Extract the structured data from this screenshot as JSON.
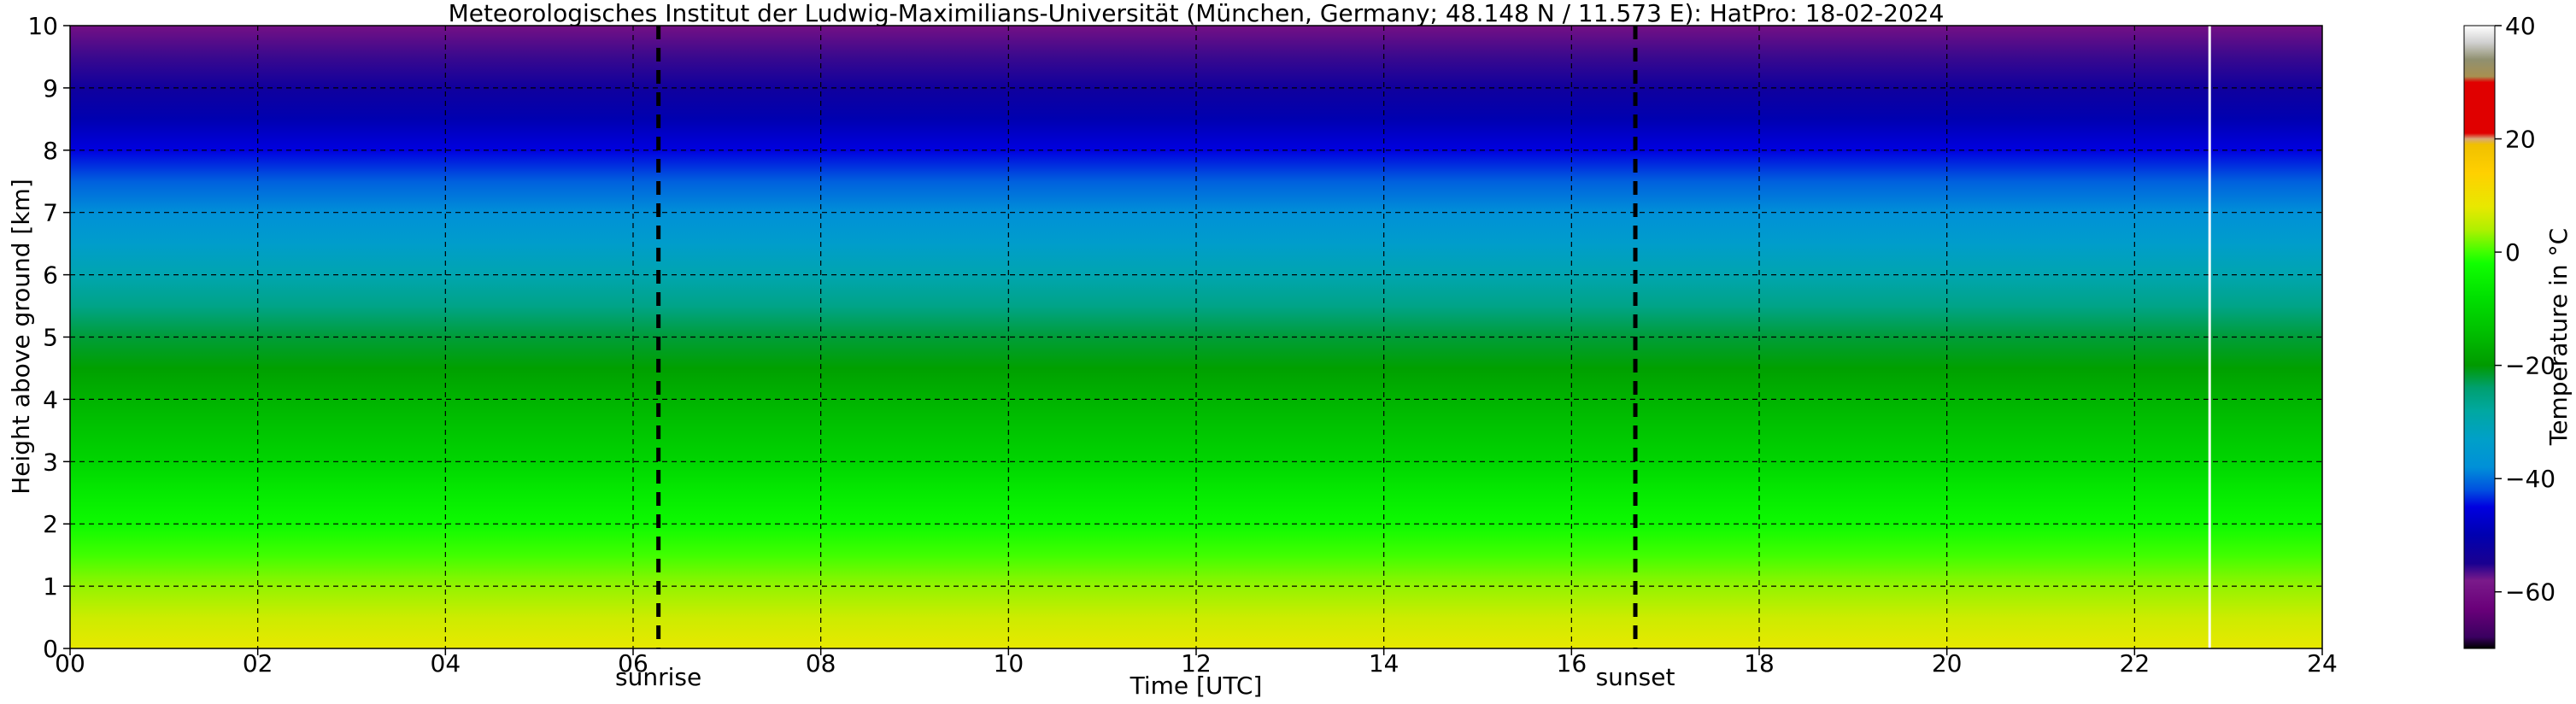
{
  "chart_data": {
    "type": "heatmap",
    "title": "Meteorologisches Institut der Ludwig-Maximilians-Universität (München, Germany; 48.148 N / 11.573 E):    HatPro: 18-02-2024",
    "xlabel": "Time [UTC]",
    "ylabel": "Height above ground [km]",
    "xlim": [
      0,
      24
    ],
    "ylim": [
      0,
      10
    ],
    "xticks": [
      0,
      2,
      4,
      6,
      8,
      10,
      12,
      14,
      16,
      18,
      20,
      22,
      24
    ],
    "xticklabels": [
      "00",
      "02",
      "04",
      "06",
      "08",
      "10",
      "12",
      "14",
      "16",
      "18",
      "20",
      "22",
      "24"
    ],
    "yticks": [
      0,
      1,
      2,
      3,
      4,
      5,
      6,
      7,
      8,
      9,
      10
    ],
    "yticklabels": [
      "0",
      "1",
      "2",
      "3",
      "4",
      "5",
      "6",
      "7",
      "8",
      "9",
      "10"
    ],
    "grid": true,
    "annotations": [
      {
        "label": "sunrise",
        "x": 6.27
      },
      {
        "label": "sunset",
        "x": 16.68
      }
    ],
    "data_gap_start": 22.8,
    "colorbar": {
      "label": "Temperature in °C",
      "range": [
        -70,
        40
      ],
      "ticks": [
        -60,
        -40,
        -20,
        0,
        20,
        40
      ],
      "ticklabels": [
        "−60",
        "−40",
        "−20",
        "0",
        "20",
        "40"
      ]
    },
    "temperature_profile": [
      {
        "height_km": 0.0,
        "temp_c": 8.0
      },
      {
        "height_km": 0.5,
        "temp_c": 6.0
      },
      {
        "height_km": 1.0,
        "temp_c": 3.0
      },
      {
        "height_km": 1.5,
        "temp_c": 0.0
      },
      {
        "height_km": 2.0,
        "temp_c": -3.0
      },
      {
        "height_km": 2.5,
        "temp_c": -6.0
      },
      {
        "height_km": 3.0,
        "temp_c": -10.0
      },
      {
        "height_km": 3.5,
        "temp_c": -13.0
      },
      {
        "height_km": 4.0,
        "temp_c": -16.0
      },
      {
        "height_km": 4.5,
        "temp_c": -19.0
      },
      {
        "height_km": 5.0,
        "temp_c": -22.0
      },
      {
        "height_km": 5.5,
        "temp_c": -26.0
      },
      {
        "height_km": 6.0,
        "temp_c": -30.0
      },
      {
        "height_km": 6.5,
        "temp_c": -34.0
      },
      {
        "height_km": 7.0,
        "temp_c": -38.0
      },
      {
        "height_km": 7.5,
        "temp_c": -41.0
      },
      {
        "height_km": 8.0,
        "temp_c": -45.0
      },
      {
        "height_km": 8.5,
        "temp_c": -50.0
      },
      {
        "height_km": 9.0,
        "temp_c": -53.0
      },
      {
        "height_km": 9.5,
        "temp_c": -56.0
      },
      {
        "height_km": 10.0,
        "temp_c": -60.0
      }
    ]
  },
  "colormap": [
    {
      "temp_c": -70,
      "color": "#000000"
    },
    {
      "temp_c": -68,
      "color": "#3a0060"
    },
    {
      "temp_c": -63,
      "color": "#6a007a"
    },
    {
      "temp_c": -58,
      "color": "#7a1a8a"
    },
    {
      "temp_c": -55,
      "color": "#1a0090"
    },
    {
      "temp_c": -50,
      "color": "#0000b0"
    },
    {
      "temp_c": -45,
      "color": "#0000e0"
    },
    {
      "temp_c": -42,
      "color": "#0050e0"
    },
    {
      "temp_c": -38,
      "color": "#0090d8"
    },
    {
      "temp_c": -33,
      "color": "#00a0c8"
    },
    {
      "temp_c": -28,
      "color": "#00a8a0"
    },
    {
      "temp_c": -24,
      "color": "#00a070"
    },
    {
      "temp_c": -20,
      "color": "#009a00"
    },
    {
      "temp_c": -14,
      "color": "#00c000"
    },
    {
      "temp_c": -8,
      "color": "#00e000"
    },
    {
      "temp_c": -2,
      "color": "#10ff00"
    },
    {
      "temp_c": 0,
      "color": "#40ff00"
    },
    {
      "temp_c": 4,
      "color": "#b0f000"
    },
    {
      "temp_c": 8,
      "color": "#e8e800"
    },
    {
      "temp_c": 14,
      "color": "#ffd000"
    },
    {
      "temp_c": 19,
      "color": "#f0c000"
    },
    {
      "temp_c": 20,
      "color": "#d8a878"
    },
    {
      "temp_c": 21,
      "color": "#e00000"
    },
    {
      "temp_c": 30,
      "color": "#e00000"
    },
    {
      "temp_c": 31,
      "color": "#a89050"
    },
    {
      "temp_c": 34,
      "color": "#909070"
    },
    {
      "temp_c": 37,
      "color": "#d0d0d0"
    },
    {
      "temp_c": 40,
      "color": "#ffffff"
    }
  ]
}
